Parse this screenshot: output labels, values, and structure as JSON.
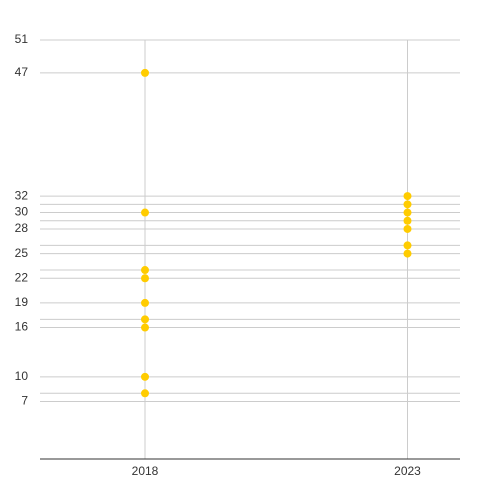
{
  "chart_data": {
    "type": "scatter",
    "x": [
      2018,
      2018,
      2018,
      2018,
      2018,
      2018,
      2018,
      2018,
      2018,
      2023,
      2023,
      2023,
      2023,
      2023,
      2023,
      2023
    ],
    "values": [
      47,
      30,
      23,
      22,
      19,
      17,
      16,
      10,
      8,
      32,
      31,
      30,
      29,
      28,
      26,
      25
    ],
    "color": "#ffcc00",
    "xlim": [
      2016,
      2024
    ],
    "xticks": [
      2018,
      2023
    ],
    "ylim": [
      0,
      51
    ],
    "yticks": [
      51,
      47,
      32,
      30,
      28,
      25,
      22,
      19,
      16,
      10,
      7
    ],
    "minor_gridlines": [
      31,
      29,
      26,
      23,
      17,
      8
    ],
    "grid": true
  }
}
